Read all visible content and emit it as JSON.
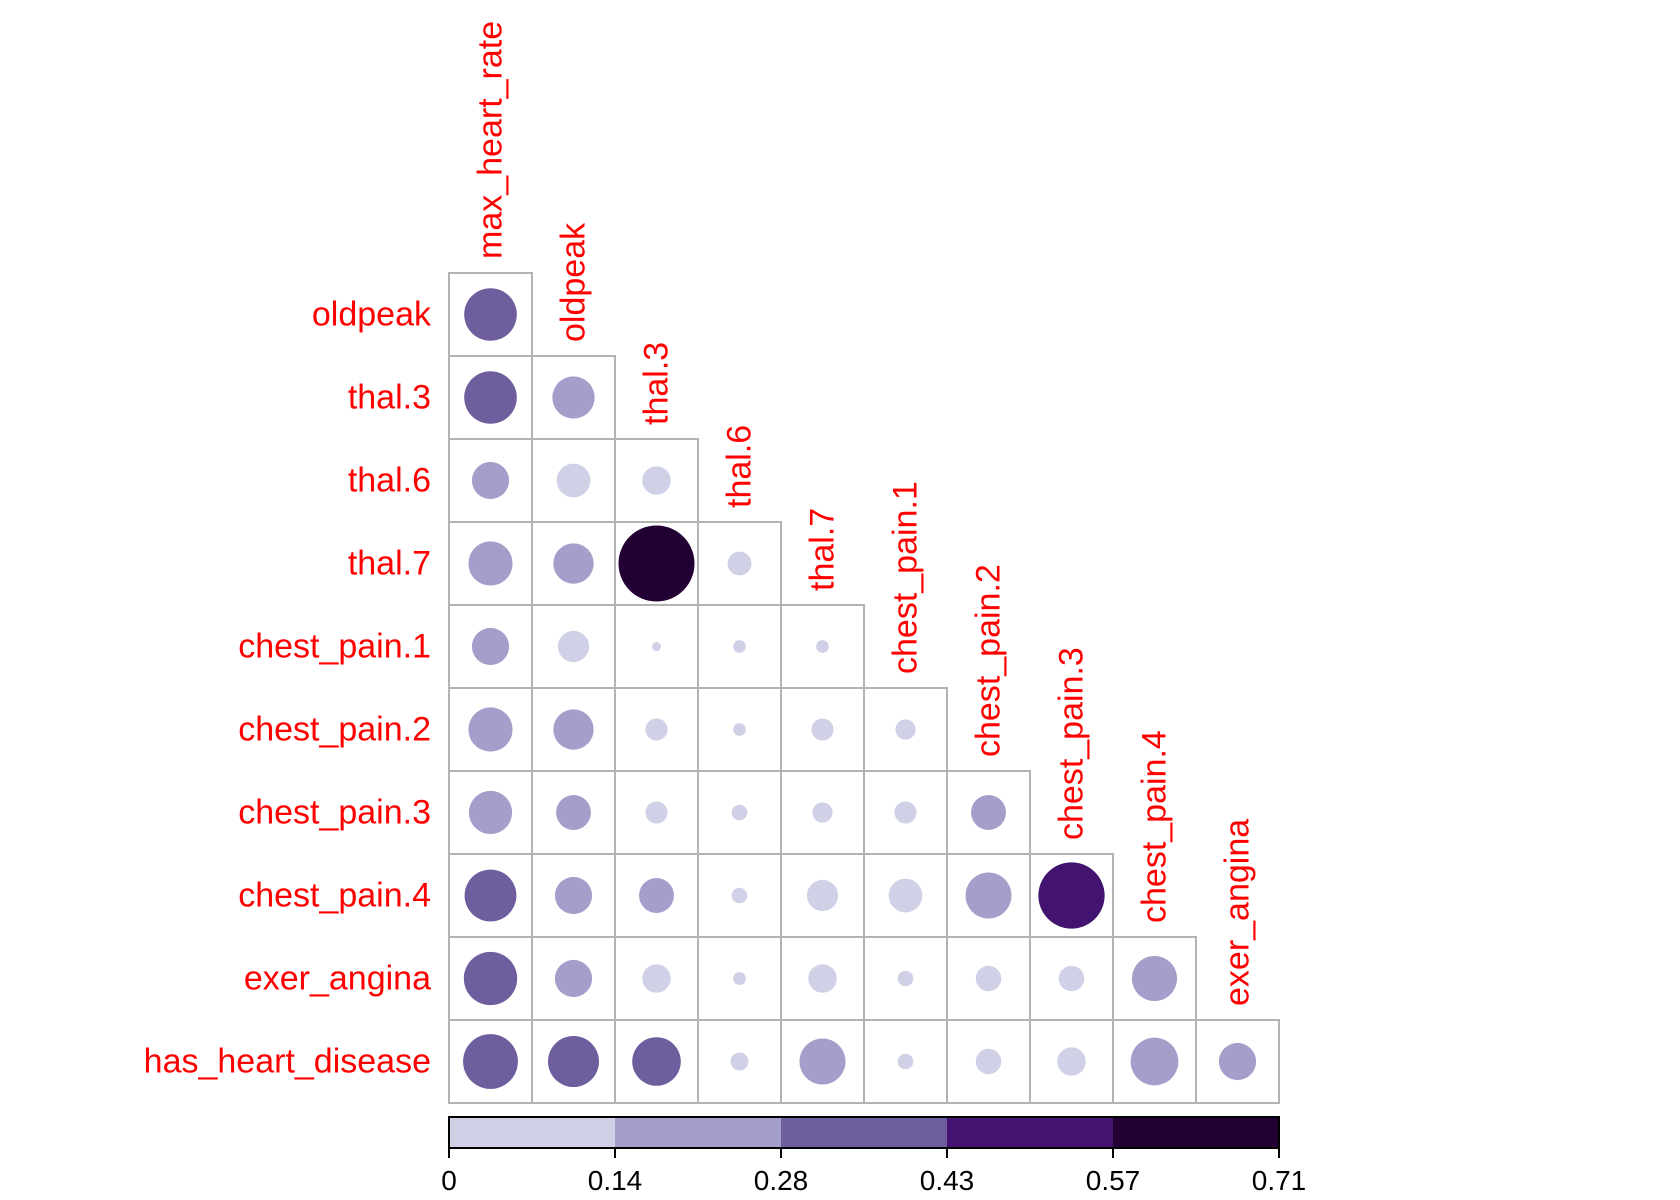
{
  "chart_data": {
    "type": "heatmap",
    "style": "lower-triangle circle correlation matrix",
    "title": "",
    "columns": [
      "max_heart_rate",
      "oldpeak",
      "thal.3",
      "thal.6",
      "thal.7",
      "chest_pain.1",
      "chest_pain.2",
      "chest_pain.3",
      "chest_pain.4",
      "exer_angina"
    ],
    "rows": [
      "oldpeak",
      "thal.3",
      "thal.6",
      "thal.7",
      "chest_pain.1",
      "chest_pain.2",
      "chest_pain.3",
      "chest_pain.4",
      "exer_angina",
      "has_heart_disease"
    ],
    "values": [
      [
        0.34
      ],
      [
        0.34,
        0.22
      ],
      [
        0.17,
        0.14,
        0.1
      ],
      [
        0.24,
        0.2,
        0.71,
        0.07
      ],
      [
        0.17,
        0.12,
        0.01,
        0.02,
        0.02
      ],
      [
        0.24,
        0.2,
        0.06,
        0.02,
        0.06,
        0.05
      ],
      [
        0.23,
        0.15,
        0.06,
        0.03,
        0.05,
        0.06,
        0.15
      ],
      [
        0.33,
        0.17,
        0.15,
        0.03,
        0.12,
        0.14,
        0.26,
        0.54
      ],
      [
        0.35,
        0.17,
        0.1,
        0.02,
        0.1,
        0.03,
        0.08,
        0.08,
        0.25
      ],
      [
        0.37,
        0.32,
        0.29,
        0.04,
        0.26,
        0.03,
        0.08,
        0.1,
        0.28,
        0.17
      ]
    ],
    "colorbar": {
      "ticks": [
        "0",
        "0.14",
        "0.28",
        "0.43",
        "0.57",
        "0.71"
      ],
      "range": [
        0,
        0.71
      ],
      "colors": [
        "#d0d1e6",
        "#a59ecb",
        "#6e5e9d",
        "#421370",
        "#230033"
      ]
    },
    "label_color": "#ff0000",
    "grid_color": "#b3b3b3"
  }
}
